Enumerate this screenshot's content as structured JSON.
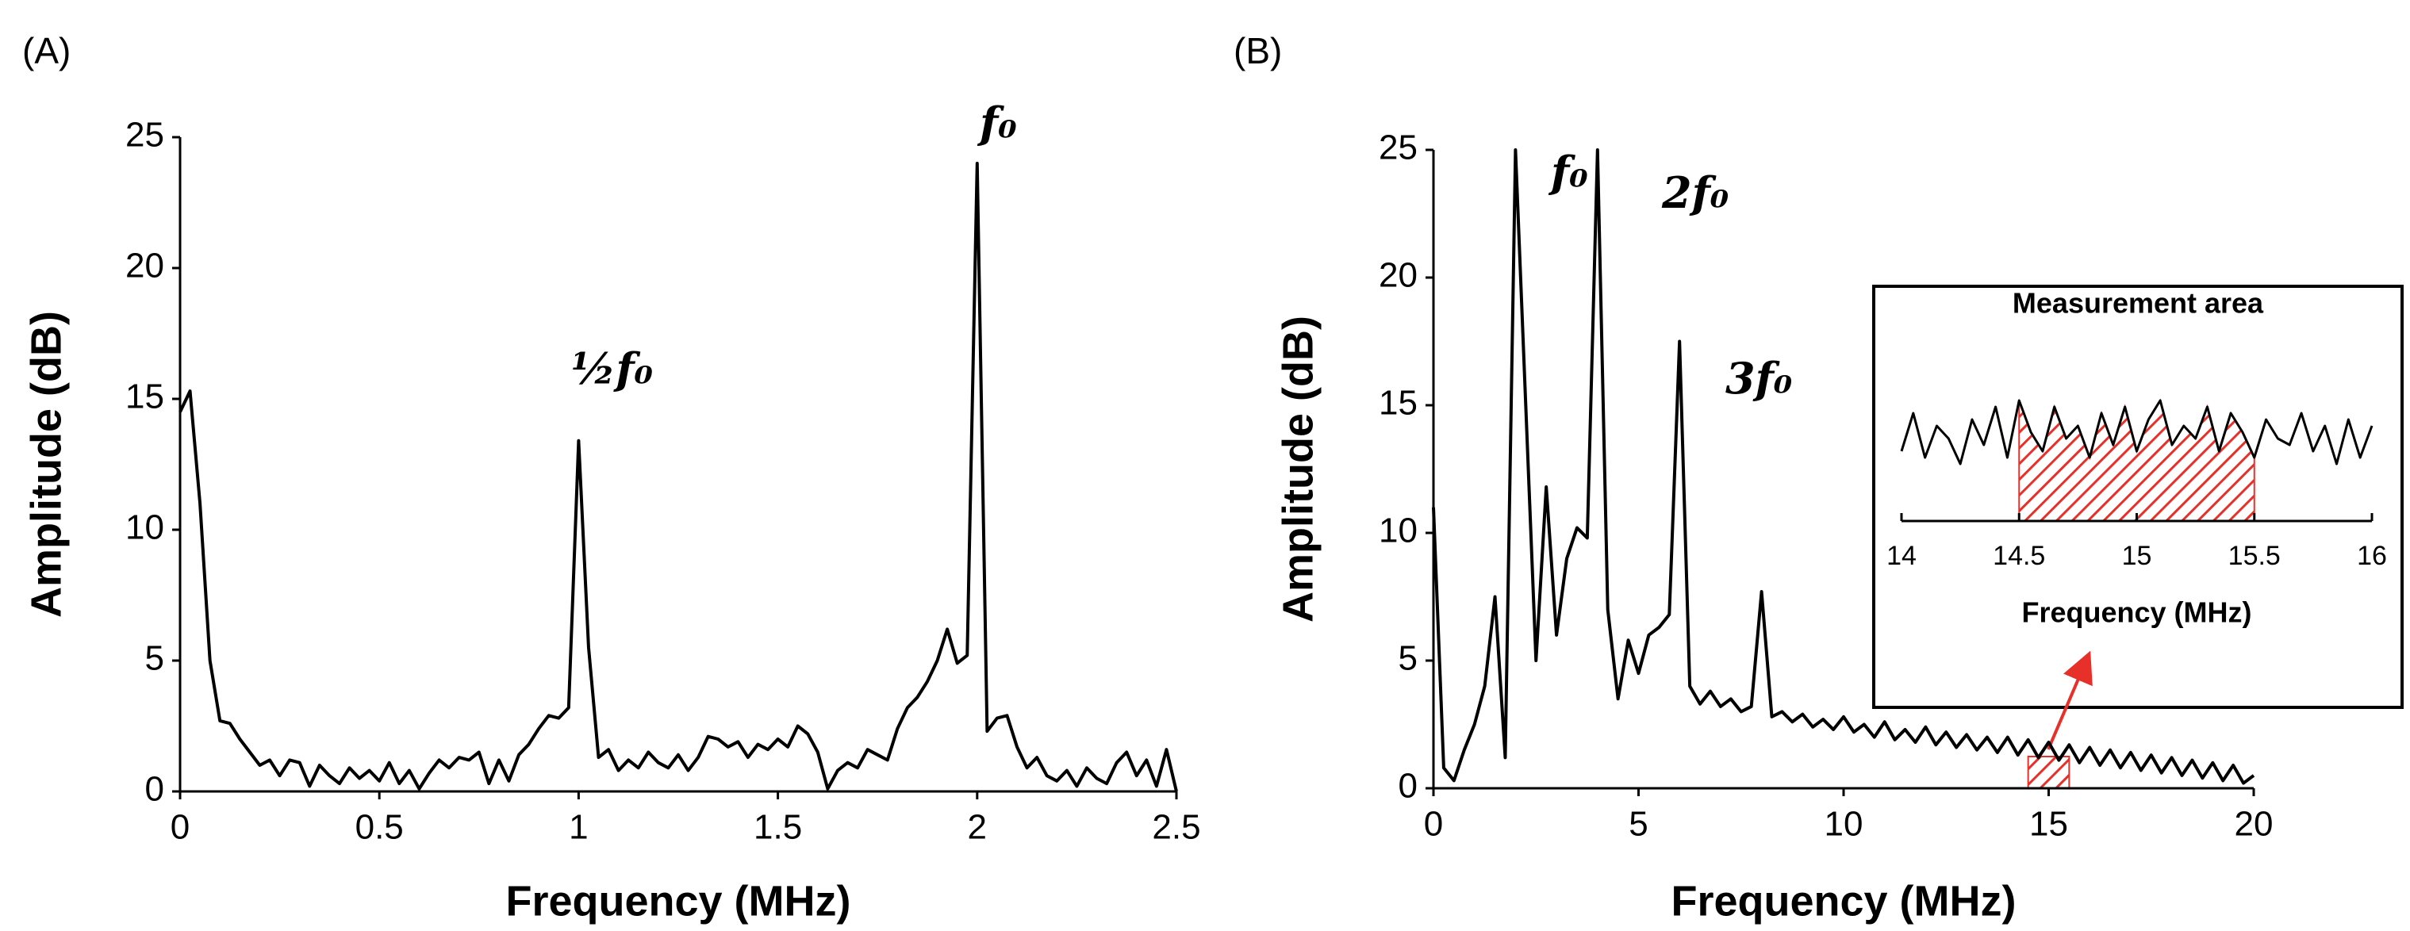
{
  "chart_data": [
    {
      "type": "line",
      "panel_label": "(A)",
      "x_label": "Frequency (MHz)",
      "y_label": "Amplitude (dB)",
      "annotations": [
        "½f₀",
        "f₀"
      ],
      "color": "#000000",
      "x": [
        0,
        0.025,
        0.05,
        0.075,
        0.1,
        0.125,
        0.15,
        0.175,
        0.2,
        0.225,
        0.25,
        0.275,
        0.3,
        0.325,
        0.35,
        0.375,
        0.4,
        0.425,
        0.45,
        0.475,
        0.5,
        0.525,
        0.55,
        0.575,
        0.6,
        0.625,
        0.65,
        0.675,
        0.7,
        0.725,
        0.75,
        0.775,
        0.8,
        0.825,
        0.85,
        0.875,
        0.9,
        0.925,
        0.95,
        0.975,
        1.0,
        1.025,
        1.05,
        1.075,
        1.1,
        1.125,
        1.15,
        1.175,
        1.2,
        1.225,
        1.25,
        1.275,
        1.3,
        1.325,
        1.35,
        1.375,
        1.4,
        1.425,
        1.45,
        1.475,
        1.5,
        1.525,
        1.55,
        1.575,
        1.6,
        1.625,
        1.65,
        1.675,
        1.7,
        1.725,
        1.75,
        1.775,
        1.8,
        1.825,
        1.85,
        1.875,
        1.9,
        1.925,
        1.95,
        1.975,
        2.0,
        2.025,
        2.05,
        2.075,
        2.1,
        2.125,
        2.15,
        2.175,
        2.2,
        2.225,
        2.25,
        2.275,
        2.3,
        2.325,
        2.35,
        2.375,
        2.4,
        2.425,
        2.45,
        2.475,
        2.5
      ],
      "values": [
        14.5,
        15.3,
        11,
        5,
        2.7,
        2.6,
        2.0,
        1.5,
        1.0,
        1.2,
        0.6,
        1.2,
        1.1,
        0.2,
        1.0,
        0.6,
        0.3,
        0.9,
        0.5,
        0.8,
        0.4,
        1.1,
        0.3,
        0.8,
        0.1,
        0.7,
        1.2,
        0.9,
        1.3,
        1.2,
        1.5,
        0.3,
        1.2,
        0.4,
        1.4,
        1.8,
        2.4,
        2.9,
        2.8,
        3.2,
        13.4,
        5.5,
        1.3,
        1.6,
        0.8,
        1.2,
        0.9,
        1.5,
        1.1,
        0.9,
        1.4,
        0.8,
        1.3,
        2.1,
        2.0,
        1.7,
        1.9,
        1.3,
        1.8,
        1.6,
        2.0,
        1.7,
        2.5,
        2.2,
        1.5,
        0.1,
        0.8,
        1.1,
        0.9,
        1.6,
        1.4,
        1.2,
        2.4,
        3.2,
        3.6,
        4.2,
        5.0,
        6.2,
        4.9,
        5.2,
        24,
        2.3,
        2.8,
        2.9,
        1.7,
        0.9,
        1.3,
        0.6,
        0.4,
        0.8,
        0.2,
        0.9,
        0.5,
        0.3,
        1.1,
        1.5,
        0.6,
        1.2,
        0.2,
        1.6,
        0
      ],
      "xlim": [
        0,
        2.5
      ],
      "xticks": [
        0,
        0.5,
        1,
        1.5,
        2,
        2.5
      ],
      "ylim": [
        0,
        25
      ],
      "yticks": [
        0,
        5,
        10,
        15,
        20,
        25
      ]
    },
    {
      "type": "line",
      "panel_label": "(B)",
      "x_label": "Frequency (MHz)",
      "y_label": "Amplitude (dB)",
      "annotations": [
        "f₀",
        "2f₀",
        "3f₀"
      ],
      "color": "#000000",
      "highlight": [
        14.5,
        15.5
      ],
      "highlight_color": "#e8302a",
      "x": [
        0,
        0.25,
        0.5,
        0.75,
        1,
        1.25,
        1.5,
        1.75,
        2,
        2.25,
        2.5,
        2.75,
        3,
        3.25,
        3.5,
        3.75,
        4,
        4.25,
        4.5,
        4.75,
        5,
        5.25,
        5.5,
        5.75,
        6,
        6.25,
        6.5,
        6.75,
        7,
        7.25,
        7.5,
        7.75,
        8,
        8.25,
        8.5,
        8.75,
        9,
        9.25,
        9.5,
        9.75,
        10,
        10.25,
        10.5,
        10.75,
        11,
        11.25,
        11.5,
        11.75,
        12,
        12.25,
        12.5,
        12.75,
        13,
        13.25,
        13.5,
        13.75,
        14,
        14.25,
        14.5,
        14.75,
        15,
        15.25,
        15.5,
        15.75,
        16,
        16.25,
        16.5,
        16.75,
        17,
        17.25,
        17.5,
        17.75,
        18,
        18.25,
        18.5,
        18.75,
        19,
        19.25,
        19.5,
        19.75,
        20
      ],
      "values": [
        11,
        0.8,
        0.3,
        1.5,
        2.5,
        4,
        7.5,
        1.2,
        25,
        15,
        5,
        11.8,
        6,
        9,
        10.2,
        9.8,
        25,
        7,
        3.5,
        5.8,
        4.5,
        6.0,
        6.3,
        6.8,
        17.5,
        4.0,
        3.3,
        3.8,
        3.2,
        3.5,
        3.0,
        3.2,
        7.7,
        2.8,
        3.0,
        2.6,
        2.9,
        2.4,
        2.7,
        2.3,
        2.8,
        2.2,
        2.5,
        2.0,
        2.6,
        1.9,
        2.3,
        1.8,
        2.4,
        1.7,
        2.2,
        1.6,
        2.1,
        1.5,
        2.0,
        1.4,
        2.0,
        1.3,
        1.9,
        1.2,
        1.8,
        1.1,
        1.7,
        1.0,
        1.6,
        0.9,
        1.5,
        0.8,
        1.4,
        0.7,
        1.3,
        0.6,
        1.2,
        0.5,
        1.1,
        0.4,
        1.0,
        0.3,
        0.9,
        0.2,
        0.5
      ],
      "xlim": [
        0,
        20
      ],
      "xticks": [
        0,
        5,
        10,
        15,
        20
      ],
      "ylim": [
        0,
        25
      ],
      "yticks": [
        0,
        5,
        10,
        15,
        20,
        25
      ]
    },
    {
      "type": "line",
      "title": "Measurement area",
      "x_label": "Frequency (MHz)",
      "color": "#000000",
      "shade": [
        14.5,
        15.5
      ],
      "shade_color": "#e8302a",
      "x": [
        14,
        14.05,
        14.1,
        14.15,
        14.2,
        14.25,
        14.3,
        14.35,
        14.4,
        14.45,
        14.5,
        14.55,
        14.6,
        14.65,
        14.7,
        14.75,
        14.8,
        14.85,
        14.9,
        14.95,
        15,
        15.05,
        15.1,
        15.15,
        15.2,
        15.25,
        15.3,
        15.35,
        15.4,
        15.45,
        15.5,
        15.55,
        15.6,
        15.65,
        15.7,
        15.75,
        15.8,
        15.85,
        15.9,
        15.95,
        16
      ],
      "values": [
        1.6,
        2.2,
        1.5,
        2.0,
        1.8,
        1.4,
        2.1,
        1.7,
        2.3,
        1.5,
        2.4,
        1.9,
        1.6,
        2.3,
        1.8,
        2.0,
        1.5,
        2.2,
        1.7,
        2.3,
        1.6,
        2.1,
        2.4,
        1.7,
        2.0,
        1.8,
        2.3,
        1.6,
        2.2,
        1.9,
        1.5,
        2.1,
        1.8,
        1.7,
        2.2,
        1.6,
        2.0,
        1.4,
        2.1,
        1.5,
        2.0
      ],
      "xlim": [
        14,
        16
      ],
      "xticks": [
        14,
        14.5,
        15,
        15.5,
        16
      ],
      "ylim": [
        0.5,
        2.5
      ]
    }
  ]
}
